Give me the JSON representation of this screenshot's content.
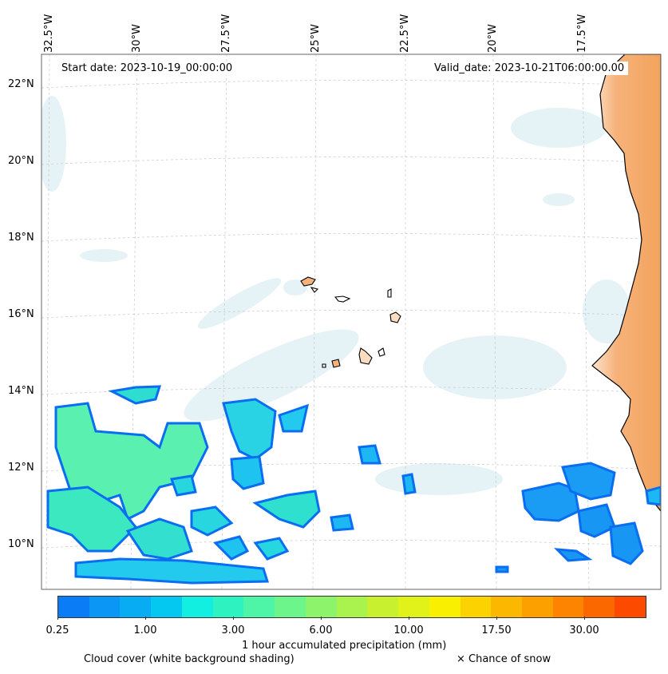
{
  "header": {
    "start_date": "Start date: 2023-10-19_00:00:00",
    "valid_date": "Valid_date: 2023-10-21T06:00:00.00"
  },
  "axes": {
    "longitude_labels": [
      "32.5°W",
      "30°W",
      "27.5°W",
      "25°W",
      "22.5°W",
      "20°W",
      "17.5°W"
    ],
    "latitude_labels": [
      "22°N",
      "20°N",
      "18°N",
      "16°N",
      "14°N",
      "12°N",
      "10°N"
    ]
  },
  "colorbar": {
    "title": "1 hour accumulated precipitation (mm)",
    "tick_labels": [
      "0.25",
      "1.00",
      "3.00",
      "6.00",
      "10.00",
      "17.50",
      "30.00"
    ],
    "colors": [
      "#0a7cf5",
      "#0b95f5",
      "#08acf2",
      "#05c8f0",
      "#12eee0",
      "#2ef2c0",
      "#4ef5a6",
      "#6cf58a",
      "#8cf36a",
      "#aaf24e",
      "#c8f02e",
      "#e0f21a",
      "#f8f000",
      "#fcd200",
      "#fcb800",
      "#fca000",
      "#fc8400",
      "#fc6800",
      "#fc4a00"
    ]
  },
  "legend": {
    "cloud_cover": "Cloud cover (white background shading)",
    "snow": "× Chance of snow"
  }
}
